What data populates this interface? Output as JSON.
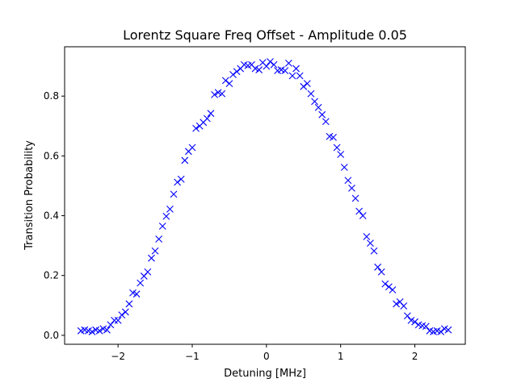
{
  "chart_data": {
    "type": "scatter",
    "title": "Lorentz Square Freq Offset - Amplitude 0.05",
    "xlabel": "Detuning [MHz]",
    "ylabel": "Transition Probability",
    "xlim": [
      -2.72,
      2.68
    ],
    "ylim": [
      -0.03,
      0.965
    ],
    "xticks": [
      -2,
      -1,
      0,
      1,
      2
    ],
    "xtick_labels": [
      "−2",
      "−1",
      "0",
      "1",
      "2"
    ],
    "yticks": [
      0.0,
      0.2,
      0.4,
      0.6,
      0.8
    ],
    "ytick_labels": [
      "0.0",
      "0.2",
      "0.4",
      "0.6",
      "0.8"
    ],
    "grid": false,
    "marker": "x",
    "color": "#0000ff",
    "series": [
      {
        "x": [
          -2.5,
          -2.45,
          -2.4,
          -2.35,
          -2.3,
          -2.25,
          -2.2,
          -2.15,
          -2.1,
          -2.05,
          -2.0,
          -1.95,
          -1.9,
          -1.85,
          -1.8,
          -1.75,
          -1.7,
          -1.65,
          -1.6,
          -1.55,
          -1.5,
          -1.45,
          -1.4,
          -1.35,
          -1.3,
          -1.25,
          -1.2,
          -1.15,
          -1.1,
          -1.05,
          -1.0,
          -0.95,
          -0.9,
          -0.85,
          -0.8,
          -0.75,
          -0.7,
          -0.65,
          -0.6,
          -0.55,
          -0.5,
          -0.45,
          -0.4,
          -0.35,
          -0.3,
          -0.25,
          -0.2,
          -0.15,
          -0.1,
          -0.05,
          0.0,
          0.05,
          0.1,
          0.15,
          0.2,
          0.25,
          0.3,
          0.35,
          0.4,
          0.45,
          0.5,
          0.55,
          0.6,
          0.65,
          0.7,
          0.75,
          0.8,
          0.85,
          0.9,
          0.95,
          1.0,
          1.05,
          1.1,
          1.15,
          1.2,
          1.25,
          1.3,
          1.35,
          1.4,
          1.45,
          1.5,
          1.55,
          1.6,
          1.65,
          1.7,
          1.75,
          1.8,
          1.85,
          1.9,
          1.95,
          2.0,
          2.05,
          2.1,
          2.15,
          2.2,
          2.25,
          2.3,
          2.35,
          2.4,
          2.45
        ],
        "y": [
          0.015,
          0.018,
          0.015,
          0.012,
          0.018,
          0.015,
          0.022,
          0.018,
          0.035,
          0.05,
          0.05,
          0.068,
          0.078,
          0.105,
          0.142,
          0.138,
          0.175,
          0.198,
          0.212,
          0.258,
          0.282,
          0.322,
          0.365,
          0.398,
          0.422,
          0.472,
          0.512,
          0.522,
          0.585,
          0.615,
          0.628,
          0.692,
          0.7,
          0.712,
          0.725,
          0.742,
          0.805,
          0.812,
          0.808,
          0.852,
          0.842,
          0.872,
          0.882,
          0.892,
          0.905,
          0.902,
          0.905,
          0.892,
          0.888,
          0.912,
          0.9,
          0.915,
          0.905,
          0.885,
          0.888,
          0.885,
          0.91,
          0.868,
          0.892,
          0.868,
          0.832,
          0.842,
          0.808,
          0.782,
          0.762,
          0.738,
          0.715,
          0.665,
          0.662,
          0.628,
          0.605,
          0.562,
          0.518,
          0.492,
          0.458,
          0.415,
          0.4,
          0.33,
          0.308,
          0.282,
          0.228,
          0.212,
          0.172,
          0.162,
          0.152,
          0.105,
          0.112,
          0.098,
          0.065,
          0.05,
          0.045,
          0.035,
          0.032,
          0.03,
          0.015,
          0.012,
          0.015,
          0.012,
          0.022,
          0.018
        ]
      }
    ]
  }
}
